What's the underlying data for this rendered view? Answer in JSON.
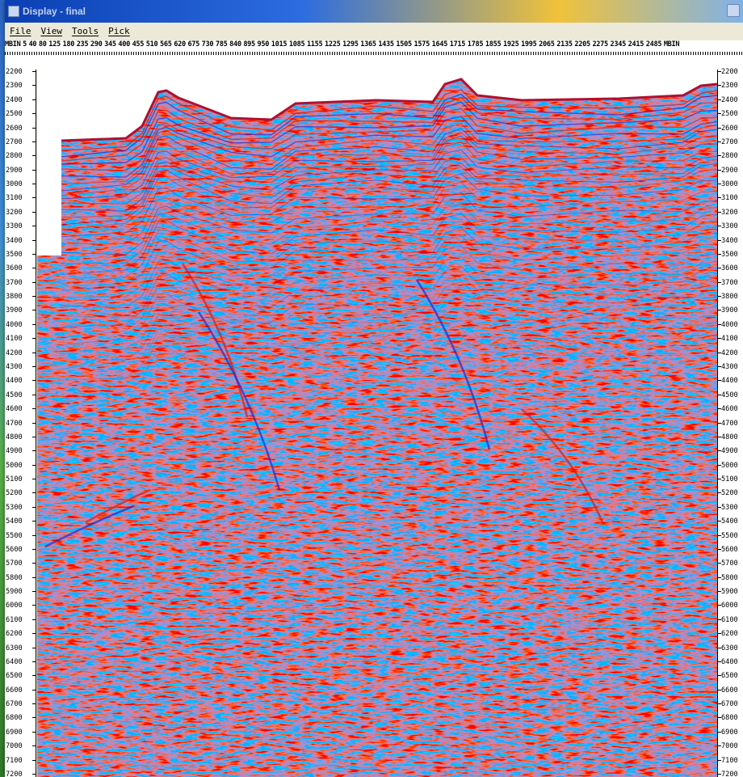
{
  "window": {
    "title": "Display - final"
  },
  "menu": {
    "items": [
      "File",
      "View",
      "Tools",
      "Pick"
    ]
  },
  "trace_axis": {
    "left_label": "MBIN",
    "right_label": "MBIN",
    "values": [
      "5",
      "40",
      "80",
      "125",
      "180",
      "235",
      "290",
      "345",
      "400",
      "455",
      "510",
      "565",
      "620",
      "675",
      "730",
      "785",
      "840",
      "895",
      "950",
      "1015",
      "1085",
      "1155",
      "1225",
      "1295",
      "1365",
      "1435",
      "1505",
      "1575",
      "1645",
      "1715",
      "1785",
      "1855",
      "1925",
      "1995",
      "2065",
      "2135",
      "2205",
      "2275",
      "2345",
      "2415",
      "2485"
    ]
  },
  "depth_axis": {
    "values": [
      "2200",
      "2300",
      "2400",
      "2500",
      "2600",
      "2700",
      "2800",
      "2900",
      "3000",
      "3100",
      "3200",
      "3300",
      "3400",
      "3500",
      "3600",
      "3700",
      "3800",
      "3900",
      "4000",
      "4100",
      "4200",
      "4300",
      "4400",
      "4500",
      "4600",
      "4700",
      "4800",
      "4900",
      "5000",
      "5100",
      "5200",
      "5300",
      "5400",
      "5500",
      "5600",
      "5700",
      "5800",
      "5900",
      "6000",
      "6100",
      "6200",
      "6300",
      "6400",
      "6500",
      "6600",
      "6700",
      "6800",
      "6900",
      "7000",
      "7100",
      "7200"
    ],
    "range": [
      2200,
      7200
    ]
  },
  "colors": {
    "positive": "#d21e1e",
    "negative": "#1e2ad2",
    "background": "#ffffff"
  }
}
